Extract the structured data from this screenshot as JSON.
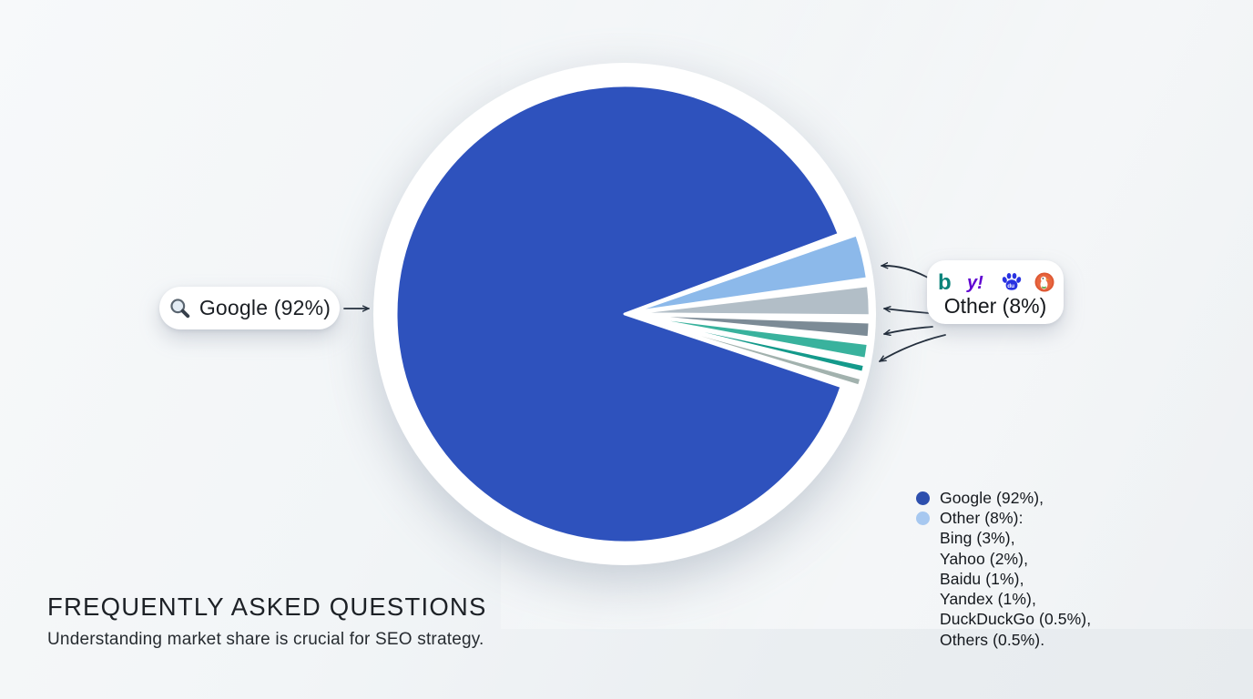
{
  "chart_data": {
    "type": "pie",
    "legend_position": "bottom-right",
    "slices": [
      {
        "label": "Google",
        "percent": 92,
        "color": "#2e52bd"
      },
      {
        "label": "Bing",
        "percent": 3,
        "color": "#8cb9ea",
        "group": "Other"
      },
      {
        "label": "Yahoo",
        "percent": 2,
        "color": "#b2bec7",
        "group": "Other"
      },
      {
        "label": "Baidu",
        "percent": 1,
        "color": "#7c8b96",
        "group": "Other"
      },
      {
        "label": "Yandex",
        "percent": 1,
        "color": "#39b29d",
        "group": "Other"
      },
      {
        "label": "DuckDuckGo",
        "percent": 0.5,
        "color": "#149a8b",
        "group": "Other"
      },
      {
        "label": "Others",
        "percent": 0.5,
        "color": "#a2b2ae",
        "group": "Other"
      }
    ],
    "other_group_total_percent": 8,
    "annotations": [
      "Google (92%)",
      "Other (8%)"
    ]
  },
  "callouts": {
    "google": {
      "label": "Google (92%)"
    },
    "other": {
      "label": "Other (8%)",
      "icons": [
        "bing-icon",
        "yahoo-icon",
        "baidu-icon",
        "duckduckgo-icon"
      ],
      "icon_glyphs": {
        "bing": "b",
        "yahoo": "y!",
        "baidu": "du"
      }
    }
  },
  "legend": {
    "items": [
      {
        "label": "Google (92%),",
        "dot": "#2d4fae"
      },
      {
        "label": "Other (8%):",
        "dot": "#a7c8f0"
      },
      {
        "label": "Bing (3%),",
        "dot": null
      },
      {
        "label": "Yahoo (2%),",
        "dot": null
      },
      {
        "label": "Baidu (1%),",
        "dot": null
      },
      {
        "label": "Yandex (1%),",
        "dot": null
      },
      {
        "label": "DuckDuckGo (0.5%),",
        "dot": null
      },
      {
        "label": "Others (0.5%).",
        "dot": null
      }
    ]
  },
  "footer": {
    "title": "FREQUENTLY ASKED QUESTIONS",
    "subtitle": "Understanding market share is crucial for SEO strategy."
  },
  "colors": {
    "arrow": "#232e3c",
    "plate": "#ffffff",
    "bing_brand": "#0a837a",
    "yahoo_brand": "#5f01d1",
    "baidu_brand": "#2932e1",
    "duckduckgo_brand": "#de5833"
  }
}
